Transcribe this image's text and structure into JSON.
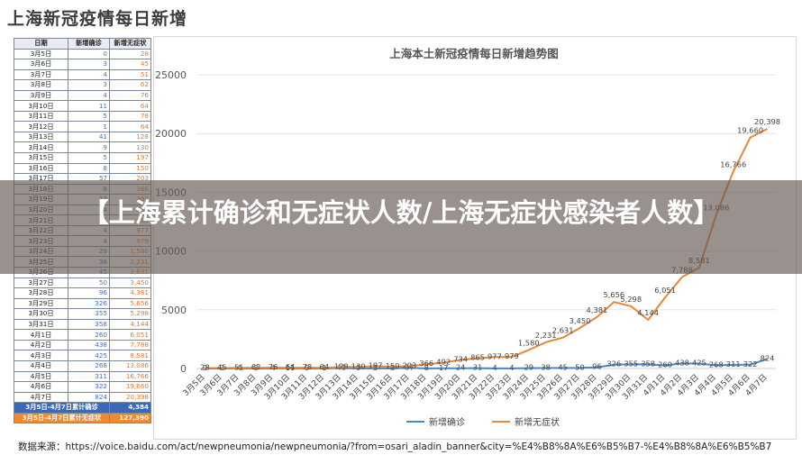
{
  "page_title": "上海新冠疫情每日新增",
  "table": {
    "headers": [
      "日期",
      "新增确诊",
      "新增无症状"
    ],
    "rows": [
      [
        "3月5日",
        "0",
        "28"
      ],
      [
        "3月6日",
        "3",
        "45"
      ],
      [
        "3月7日",
        "4",
        "51"
      ],
      [
        "3月8日",
        "3",
        "62"
      ],
      [
        "3月9日",
        "4",
        "76"
      ],
      [
        "3月10日",
        "11",
        "64"
      ],
      [
        "3月11日",
        "5",
        "78"
      ],
      [
        "3月12日",
        "1",
        "64"
      ],
      [
        "3月13日",
        "41",
        "128"
      ],
      [
        "3月14日",
        "9",
        "130"
      ],
      [
        "3月15日",
        "5",
        "197"
      ],
      [
        "3月16日",
        "8",
        "150"
      ],
      [
        "3月17日",
        "57",
        "203"
      ],
      [
        "3月18日",
        "8",
        "366"
      ],
      [
        "3月19日",
        "17",
        "492"
      ],
      [
        "3月20日",
        "24",
        "734"
      ],
      [
        "3月21日",
        "31",
        "865"
      ],
      [
        "3月22日",
        "4",
        "977"
      ],
      [
        "3月23日",
        "4",
        "979"
      ],
      [
        "3月24日",
        "29",
        "1,580"
      ],
      [
        "3月25日",
        "38",
        "2,231"
      ],
      [
        "3月26日",
        "45",
        "2,631"
      ],
      [
        "3月27日",
        "50",
        "3,450"
      ],
      [
        "3月28日",
        "96",
        "4,381"
      ],
      [
        "3月29日",
        "326",
        "5,656"
      ],
      [
        "3月30日",
        "355",
        "5,298"
      ],
      [
        "3月31日",
        "358",
        "4,144"
      ],
      [
        "4月1日",
        "260",
        "6,051"
      ],
      [
        "4月2日",
        "438",
        "7,788"
      ],
      [
        "4月3日",
        "425",
        "8,581"
      ],
      [
        "4月4日",
        "268",
        "13,086"
      ],
      [
        "4月5日",
        "311",
        "16,766"
      ],
      [
        "4月6日",
        "322",
        "19,660"
      ],
      [
        "4月7日",
        "824",
        "20,398"
      ]
    ],
    "total_row": [
      "3月5日-4月7日累计确诊",
      "4,384"
    ],
    "total_row2": [
      "3月5日-4月7日累计无症状",
      "127,390"
    ]
  },
  "chart_data": {
    "type": "line",
    "title": "上海本土新冠疫情每日新增趋势图",
    "categories": [
      "3月5日",
      "3月6日",
      "3月7日",
      "3月8日",
      "3月9日",
      "3月10日",
      "3月11日",
      "3月12日",
      "3月13日",
      "3月14日",
      "3月15日",
      "3月16日",
      "3月17日",
      "3月18日",
      "3月19日",
      "3月20日",
      "3月21日",
      "3月22日",
      "3月23日",
      "3月24日",
      "3月25日",
      "3月26日",
      "3月27日",
      "3月28日",
      "3月29日",
      "3月30日",
      "3月31日",
      "4月1日",
      "4月2日",
      "4月3日",
      "4月4日",
      "4月5日",
      "4月6日",
      "4月7日"
    ],
    "series": [
      {
        "name": "新增确诊",
        "color": "#4a86c8",
        "values": [
          0,
          3,
          4,
          3,
          4,
          11,
          5,
          1,
          41,
          9,
          5,
          8,
          57,
          8,
          17,
          24,
          31,
          4,
          4,
          29,
          38,
          45,
          50,
          96,
          326,
          355,
          358,
          260,
          438,
          425,
          268,
          311,
          322,
          824
        ]
      },
      {
        "name": "新增无症状",
        "color": "#e8873a",
        "values": [
          28,
          45,
          51,
          62,
          76,
          64,
          78,
          64,
          128,
          130,
          197,
          150,
          203,
          366,
          492,
          734,
          865,
          977,
          979,
          1580,
          2231,
          2631,
          3450,
          4381,
          5656,
          5298,
          4144,
          6051,
          7788,
          8581,
          13086,
          16766,
          19660,
          20398
        ]
      }
    ],
    "ylim": [
      0,
      25000
    ],
    "yticks": [
      "0",
      "5000",
      "10000",
      "15000",
      "20000",
      "25000"
    ],
    "legend_position": "bottom",
    "grid": true
  },
  "source_text": "数据来源：https://voice.baidu.com/act/newpneumonia/newpneumonia/?from=osari_aladin_banner&city=%E4%B8%8A%E6%B5%B7-%E4%B8%8A%E6%B5%B7",
  "banner": {
    "text": "【上海累计确诊和无症状人数/上海无症状感染者人数】"
  }
}
